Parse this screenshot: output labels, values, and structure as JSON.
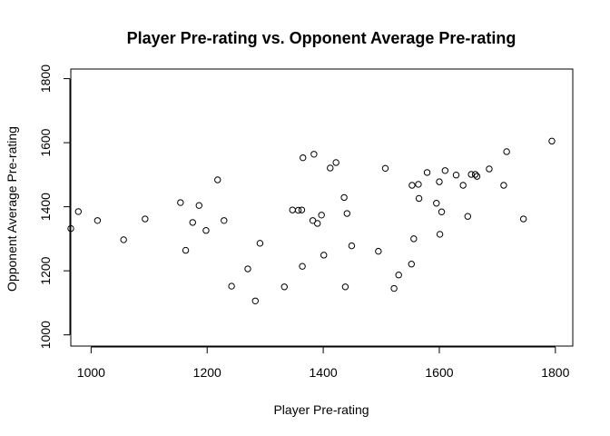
{
  "chart_data": {
    "type": "scatter",
    "title": "Player Pre-rating vs. Opponent Average Pre-rating",
    "xlabel": "Player Pre-rating",
    "ylabel": "Opponent Average Pre-rating",
    "xlim": [
      965,
      1830
    ],
    "ylim": [
      965,
      1830
    ],
    "xticks": [
      1000,
      1200,
      1400,
      1600,
      1800
    ],
    "yticks": [
      1000,
      1200,
      1400,
      1600,
      1800
    ],
    "grid": false,
    "points": [
      {
        "x": 965,
        "y": 1332
      },
      {
        "x": 978,
        "y": 1385
      },
      {
        "x": 1011,
        "y": 1357
      },
      {
        "x": 1056,
        "y": 1297
      },
      {
        "x": 1093,
        "y": 1362
      },
      {
        "x": 1154,
        "y": 1413
      },
      {
        "x": 1163,
        "y": 1264
      },
      {
        "x": 1175,
        "y": 1351
      },
      {
        "x": 1186,
        "y": 1404
      },
      {
        "x": 1198,
        "y": 1326
      },
      {
        "x": 1218,
        "y": 1484
      },
      {
        "x": 1229,
        "y": 1357
      },
      {
        "x": 1242,
        "y": 1152
      },
      {
        "x": 1270,
        "y": 1206
      },
      {
        "x": 1283,
        "y": 1106
      },
      {
        "x": 1291,
        "y": 1286
      },
      {
        "x": 1333,
        "y": 1150
      },
      {
        "x": 1347,
        "y": 1390
      },
      {
        "x": 1357,
        "y": 1389
      },
      {
        "x": 1363,
        "y": 1390
      },
      {
        "x": 1364,
        "y": 1214
      },
      {
        "x": 1365,
        "y": 1553
      },
      {
        "x": 1382,
        "y": 1357
      },
      {
        "x": 1384,
        "y": 1564
      },
      {
        "x": 1390,
        "y": 1348
      },
      {
        "x": 1397,
        "y": 1374
      },
      {
        "x": 1401,
        "y": 1249
      },
      {
        "x": 1412,
        "y": 1521
      },
      {
        "x": 1422,
        "y": 1538
      },
      {
        "x": 1436,
        "y": 1429
      },
      {
        "x": 1438,
        "y": 1150
      },
      {
        "x": 1441,
        "y": 1379
      },
      {
        "x": 1449,
        "y": 1278
      },
      {
        "x": 1495,
        "y": 1261
      },
      {
        "x": 1507,
        "y": 1520
      },
      {
        "x": 1522,
        "y": 1145
      },
      {
        "x": 1530,
        "y": 1187
      },
      {
        "x": 1552,
        "y": 1221
      },
      {
        "x": 1553,
        "y": 1467
      },
      {
        "x": 1556,
        "y": 1300
      },
      {
        "x": 1564,
        "y": 1470
      },
      {
        "x": 1565,
        "y": 1426
      },
      {
        "x": 1579,
        "y": 1507
      },
      {
        "x": 1595,
        "y": 1411
      },
      {
        "x": 1600,
        "y": 1478
      },
      {
        "x": 1601,
        "y": 1314
      },
      {
        "x": 1604,
        "y": 1384
      },
      {
        "x": 1610,
        "y": 1513
      },
      {
        "x": 1629,
        "y": 1499
      },
      {
        "x": 1641,
        "y": 1467
      },
      {
        "x": 1649,
        "y": 1370
      },
      {
        "x": 1655,
        "y": 1501
      },
      {
        "x": 1662,
        "y": 1501
      },
      {
        "x": 1665,
        "y": 1495
      },
      {
        "x": 1686,
        "y": 1518
      },
      {
        "x": 1711,
        "y": 1467
      },
      {
        "x": 1716,
        "y": 1572
      },
      {
        "x": 1745,
        "y": 1362
      },
      {
        "x": 1794,
        "y": 1605
      }
    ]
  }
}
